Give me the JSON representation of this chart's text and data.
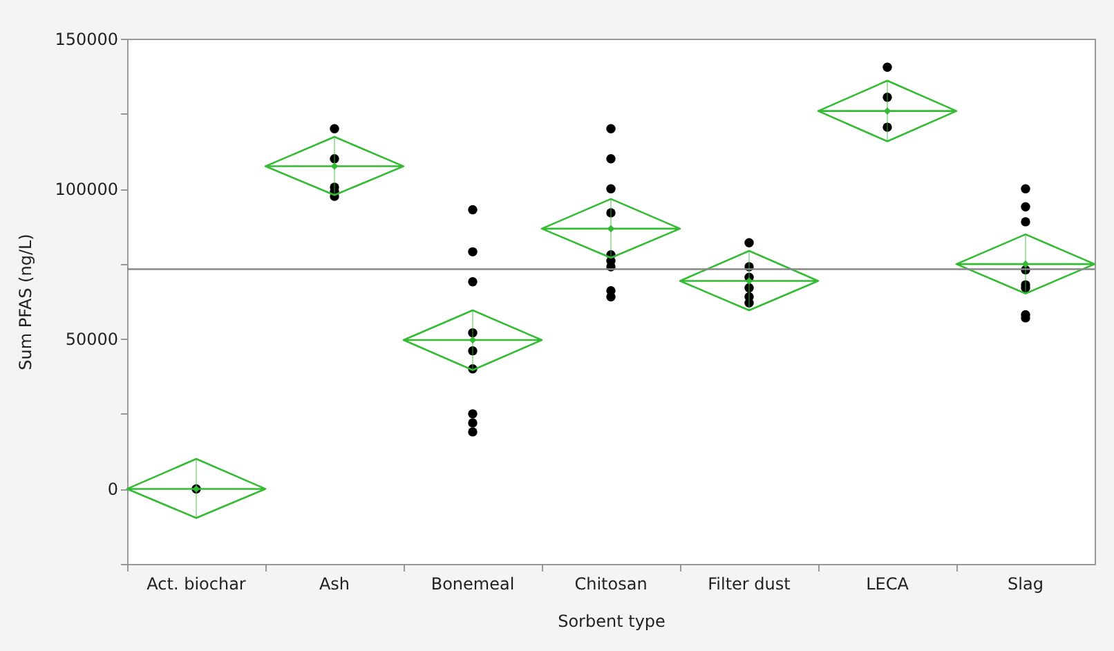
{
  "chart_data": {
    "type": "scatter",
    "xlabel": "Sorbent type",
    "ylabel": "Sum PFAS (ng/L)",
    "categories": [
      "Act. biochar",
      "Ash",
      "Bonemeal",
      "Chitosan",
      "Filter dust",
      "LECA",
      "Slag"
    ],
    "ylim": [
      -25000,
      150000
    ],
    "yticks": [
      {
        "value": -25000,
        "label": null
      },
      0,
      {
        "value": 25000,
        "label": null
      },
      50000,
      {
        "value": 75000,
        "label": null
      },
      100000,
      {
        "value": 125000,
        "label": null
      },
      150000
    ],
    "grid": false,
    "series": [
      {
        "marker": "circle",
        "color": "#000000",
        "x": [
          "Act. biochar",
          "Ash",
          "Ash",
          "Ash",
          "Ash",
          "Ash",
          "Bonemeal",
          "Bonemeal",
          "Bonemeal",
          "Bonemeal",
          "Bonemeal",
          "Bonemeal",
          "Bonemeal",
          "Bonemeal",
          "Bonemeal",
          "Chitosan",
          "Chitosan",
          "Chitosan",
          "Chitosan",
          "Chitosan",
          "Chitosan",
          "Chitosan",
          "Chitosan",
          "Chitosan",
          "Filter dust",
          "Filter dust",
          "Filter dust",
          "Filter dust",
          "Filter dust",
          "Filter dust",
          "LECA",
          "LECA",
          "LECA",
          "Slag",
          "Slag",
          "Slag",
          "Slag",
          "Slag",
          "Slag",
          "Slag",
          "Slag"
        ],
        "values": [
          0,
          120000,
          110000,
          100500,
          99000,
          97500,
          93000,
          79000,
          69000,
          52000,
          46000,
          40000,
          25000,
          22000,
          19000,
          120000,
          110000,
          100000,
          92000,
          78000,
          76000,
          74000,
          66000,
          64000,
          82000,
          74000,
          70500,
          67000,
          64000,
          62000,
          140500,
          130500,
          120500,
          100000,
          94000,
          89000,
          73000,
          68000,
          67000,
          58000,
          57000
        ]
      },
      {
        "marker": "diamond",
        "color": "#33bb33",
        "values": [
          0,
          107500,
          49600,
          86700,
          69300,
          125900,
          74900
        ],
        "errors": [
          [
            -9700,
            10000
          ],
          [
            97900,
            117300
          ],
          [
            39600,
            59500
          ],
          [
            77000,
            96600
          ],
          [
            59500,
            79300
          ],
          [
            115800,
            136000
          ],
          [
            65100,
            84800
          ]
        ]
      }
    ],
    "ref_lines": [
      {
        "axis": "y",
        "value": 73200,
        "color": "#888888"
      }
    ]
  }
}
